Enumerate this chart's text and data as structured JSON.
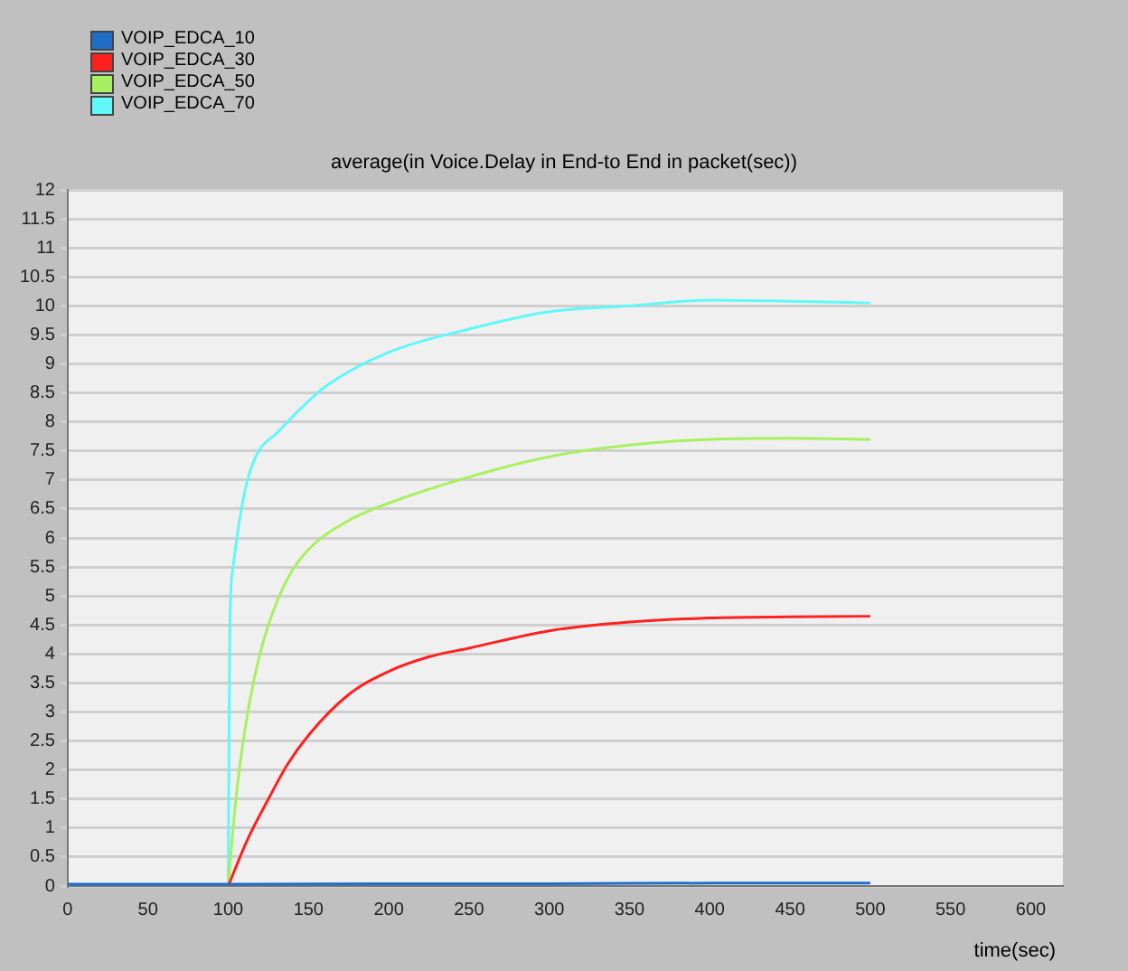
{
  "chart_data": {
    "type": "line",
    "title": "average(in Voice.Delay in End-to End in packet(sec))",
    "xlabel": "time(sec)",
    "xlim": [
      0,
      620
    ],
    "xticks": [
      0,
      50,
      100,
      150,
      200,
      250,
      300,
      350,
      400,
      450,
      500,
      550,
      600
    ],
    "ylim": [
      0,
      12
    ],
    "yticks": [
      0,
      0.5,
      1,
      1.5,
      2,
      2.5,
      3,
      3.5,
      4,
      4.5,
      5,
      5.5,
      6,
      6.5,
      7,
      7.5,
      8,
      8.5,
      9,
      9.5,
      10,
      10.5,
      11,
      11.5,
      12
    ],
    "grid": "y",
    "legend": "top left",
    "marker": "none",
    "line_style": "solid",
    "series": [
      {
        "name": "VOIP_EDCA_10",
        "color": "#1f6fc8",
        "x": [
          0,
          100,
          200,
          300,
          400,
          500
        ],
        "values": [
          0.03,
          0.03,
          0.04,
          0.04,
          0.05,
          0.05
        ]
      },
      {
        "name": "VOIP_EDCA_30",
        "color": "#ff2020",
        "x": [
          100,
          112,
          125,
          137,
          150,
          175,
          200,
          225,
          250,
          300,
          350,
          400,
          450,
          500
        ],
        "values": [
          0,
          0.8,
          1.5,
          2.1,
          2.6,
          3.3,
          3.7,
          3.95,
          4.1,
          4.4,
          4.55,
          4.62,
          4.64,
          4.65
        ]
      },
      {
        "name": "VOIP_EDCA_50",
        "color": "#a8f060",
        "x": [
          100,
          103,
          106,
          111,
          118,
          125,
          137,
          150,
          175,
          200,
          250,
          300,
          350,
          400,
          450,
          500
        ],
        "values": [
          0,
          1,
          1.8,
          2.8,
          3.8,
          4.5,
          5.3,
          5.8,
          6.3,
          6.6,
          7.05,
          7.4,
          7.6,
          7.7,
          7.72,
          7.7
        ]
      },
      {
        "name": "VOIP_EDCA_70",
        "color": "#60f8f8",
        "x": [
          100,
          100.5,
          101,
          103,
          107,
          112,
          119,
          130,
          144,
          160,
          200,
          250,
          300,
          350,
          400,
          450,
          500
        ],
        "values": [
          0,
          2.5,
          4.5,
          5.5,
          6.3,
          7,
          7.5,
          7.8,
          8.2,
          8.6,
          9.2,
          9.6,
          9.9,
          10,
          10.1,
          10.08,
          10.05
        ]
      }
    ]
  }
}
